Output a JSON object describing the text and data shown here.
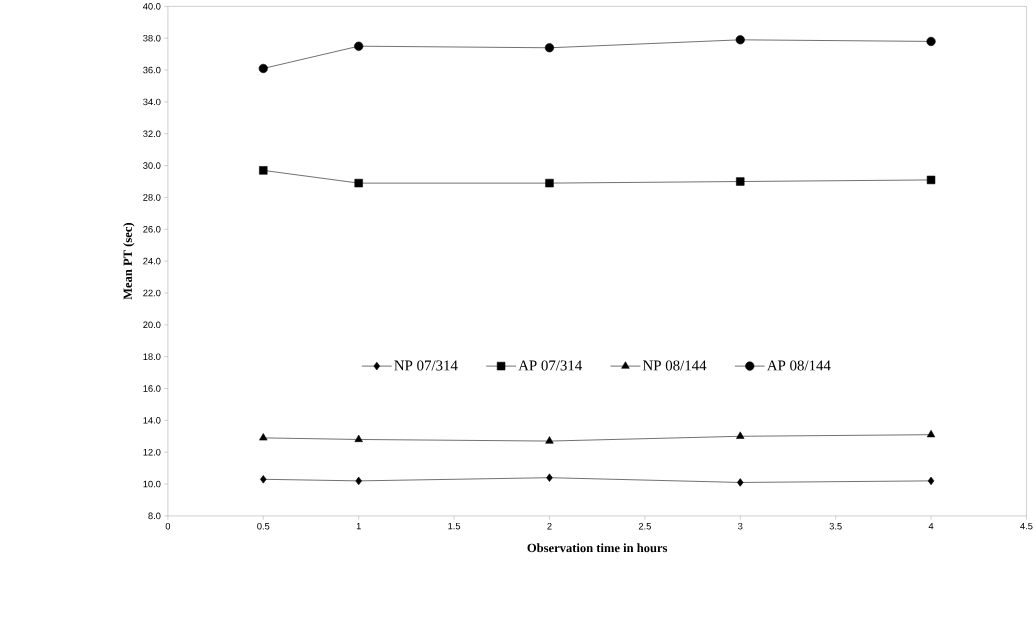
{
  "chart_data": {
    "type": "line",
    "xlabel": "Observation time in hours",
    "ylabel": "Mean PT (sec)",
    "x": [
      0.5,
      1,
      2,
      3,
      4
    ],
    "series": [
      {
        "name": "NP 07/314",
        "color": "#000000",
        "marker": "diamond",
        "values": [
          10.3,
          10.2,
          10.4,
          10.1,
          10.2
        ]
      },
      {
        "name": "AP 07/314",
        "color": "#000000",
        "marker": "square",
        "values": [
          29.7,
          28.9,
          28.9,
          29.0,
          29.1
        ]
      },
      {
        "name": "NP 08/144",
        "color": "#000000",
        "marker": "triangle",
        "values": [
          12.9,
          12.8,
          12.7,
          13.0,
          13.1
        ]
      },
      {
        "name": "AP 08/144",
        "color": "#000000",
        "marker": "circle",
        "values": [
          36.1,
          37.5,
          37.4,
          37.9,
          37.8
        ]
      }
    ],
    "xlim": [
      0,
      4.5
    ],
    "xticks": [
      0,
      0.5,
      1,
      1.5,
      2,
      2.5,
      3,
      3.5,
      4,
      4.5
    ],
    "ylim": [
      8,
      40
    ],
    "yticks": [
      {
        "value": 8,
        "label": "8.0"
      },
      {
        "value": 10,
        "label": "10.0"
      },
      {
        "value": 12,
        "label": "12.0"
      },
      {
        "value": 14,
        "label": "14.0"
      },
      {
        "value": 16,
        "label": "16.0"
      },
      {
        "value": 18,
        "label": "18.0"
      },
      {
        "value": 20,
        "label": "20.0"
      },
      {
        "value": 22,
        "label": "22.0"
      },
      {
        "value": 24,
        "label": "24.0"
      },
      {
        "value": 26,
        "label": "26.0"
      },
      {
        "value": 28,
        "label": "28.0"
      },
      {
        "value": 30,
        "label": "30.0"
      },
      {
        "value": 32,
        "label": "32.0"
      },
      {
        "value": 34,
        "label": "34.0"
      },
      {
        "value": 36,
        "label": "36.0"
      },
      {
        "value": 38,
        "label": "38.0"
      },
      {
        "value": 40,
        "label": "40.0"
      }
    ],
    "grid": false,
    "legend": "center",
    "line_style": "solid"
  }
}
